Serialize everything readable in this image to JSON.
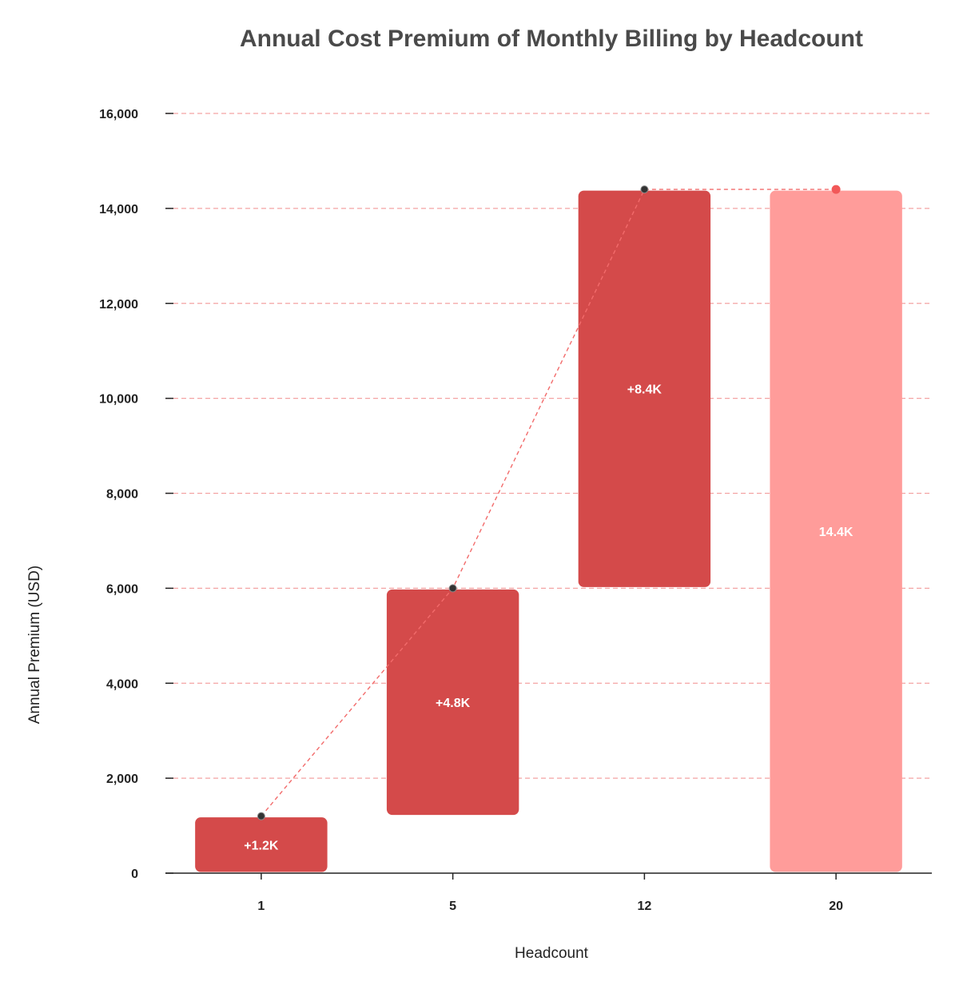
{
  "chart_data": {
    "type": "bar",
    "subtype": "waterfall",
    "title": "Annual Cost Premium of Monthly Billing by Headcount",
    "xlabel": "Headcount",
    "ylabel": "Annual Premium (USD)",
    "categories": [
      "1",
      "5",
      "12",
      "20"
    ],
    "bars": [
      {
        "category": "1",
        "kind": "increment",
        "start": 0,
        "end": 1200,
        "label": "+1.2K"
      },
      {
        "category": "5",
        "kind": "increment",
        "start": 1200,
        "end": 6000,
        "label": "+4.8K"
      },
      {
        "category": "12",
        "kind": "increment",
        "start": 6000,
        "end": 14400,
        "label": "+8.4K"
      },
      {
        "category": "20",
        "kind": "total",
        "start": 0,
        "end": 14400,
        "label": "14.4K"
      }
    ],
    "ylim": [
      0,
      16000
    ],
    "yticks": [
      0,
      2000,
      4000,
      6000,
      8000,
      10000,
      12000,
      14000,
      16000
    ],
    "ytick_labels": [
      "0",
      "2,000",
      "4,000",
      "6,000",
      "8,000",
      "10,000",
      "12,000",
      "14,000",
      "16,000"
    ],
    "grid": true,
    "legend": "none",
    "colors": {
      "increment": "#d44a4a",
      "total": "#ff9c9a",
      "grid": "#f4a3a3",
      "connector": "#f26b6b",
      "marker": "#333333",
      "total_marker": "#f25858",
      "axis": "#222222"
    }
  }
}
